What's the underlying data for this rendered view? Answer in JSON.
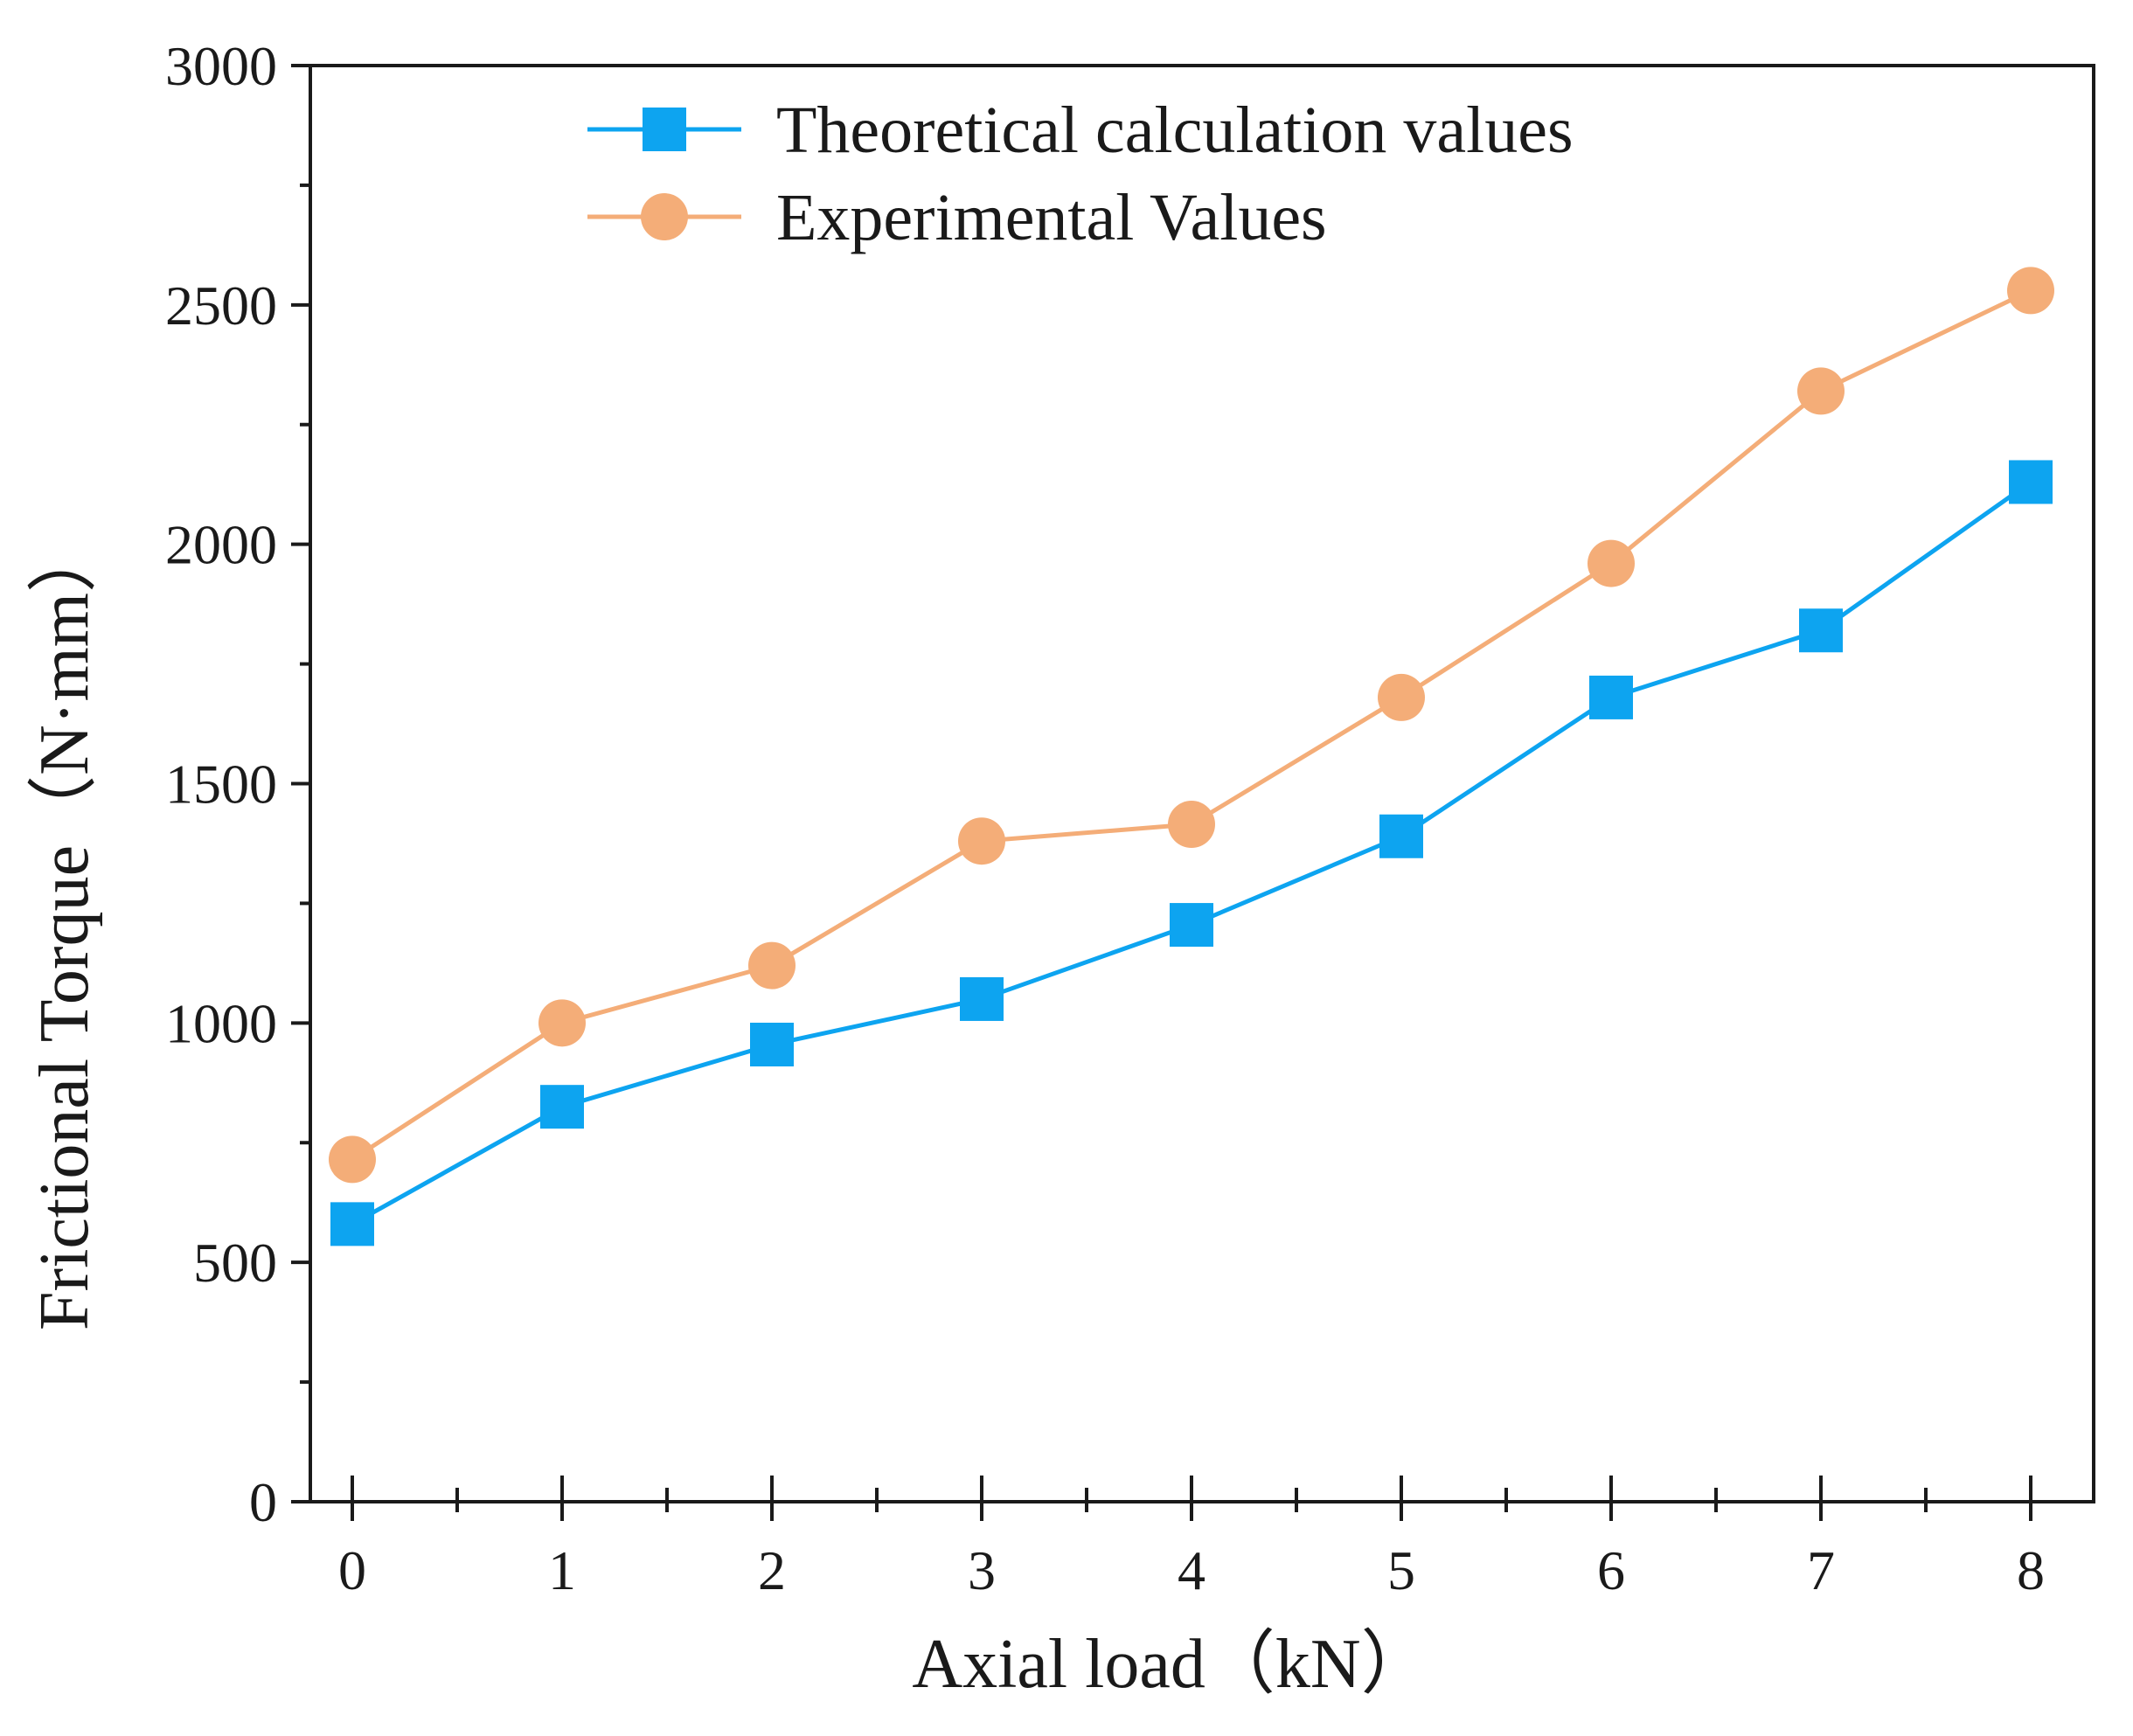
{
  "chart_data": {
    "type": "line",
    "title": "",
    "xlabel": "Axial load（kN）",
    "ylabel": "Frictional Torque（N·mm）",
    "x": [
      0,
      1,
      2,
      3,
      4,
      5,
      6,
      7,
      8
    ],
    "xlim": [
      -0.2,
      8.3
    ],
    "ylim": [
      0,
      3000
    ],
    "xticks": [
      0,
      1,
      2,
      3,
      4,
      5,
      6,
      7,
      8
    ],
    "yticks": [
      0,
      500,
      1000,
      1500,
      2000,
      2500,
      3000
    ],
    "grid": false,
    "legend_position": "top-center",
    "series": [
      {
        "name": "Theoretical calculation values",
        "marker": "square",
        "color": "#0da4f0",
        "values": [
          580,
          825,
          955,
          1050,
          1205,
          1390,
          1680,
          1820,
          2130
        ]
      },
      {
        "name": "Experimental Values",
        "marker": "circle",
        "color": "#f4ad78",
        "values": [
          715,
          1000,
          1120,
          1380,
          1415,
          1680,
          1960,
          2320,
          2530
        ]
      }
    ]
  }
}
